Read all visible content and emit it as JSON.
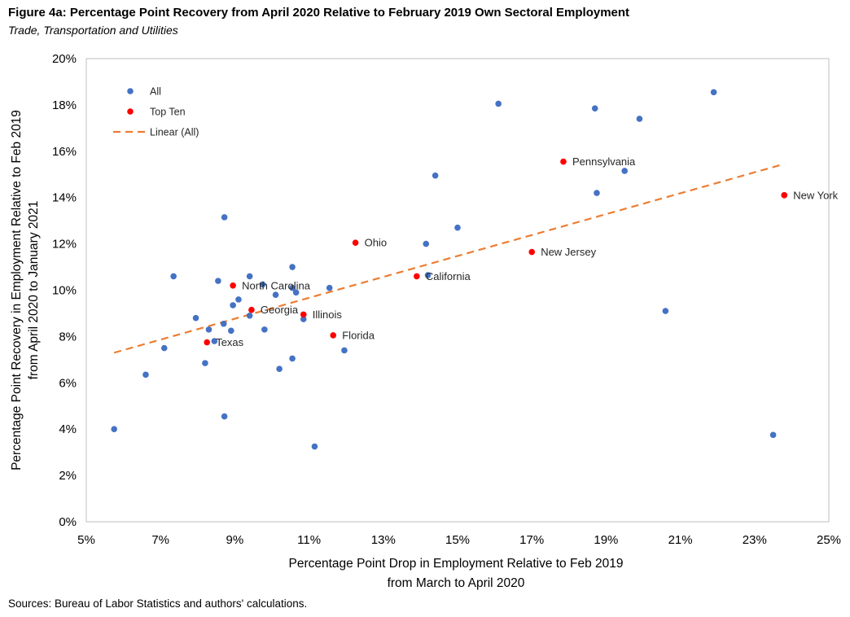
{
  "figure": {
    "title": "Figure 4a: Percentage Point Recovery from April 2020 Relative to February 2019 Own Sectoral Employment",
    "subtitle": "Trade, Transportation and Utilities",
    "source": "Sources: Bureau of Labor Statistics and authors' calculations."
  },
  "chart_data": {
    "type": "scatter",
    "xlabel_lines": [
      "Percentage Point Drop in Employment Relative to Feb 2019",
      "from March to April 2020"
    ],
    "ylabel_lines": [
      "Percentage Point Recovery in Employment Relative to Feb 2019",
      "from April 2020 to January 2021"
    ],
    "xlim": [
      5,
      25
    ],
    "ylim": [
      0,
      20
    ],
    "x_ticks": [
      5,
      7,
      9,
      11,
      13,
      15,
      17,
      19,
      21,
      23,
      25
    ],
    "y_ticks": [
      0,
      2,
      4,
      6,
      8,
      10,
      12,
      14,
      16,
      18,
      20
    ],
    "tick_suffix": "%",
    "grid": false,
    "legend": {
      "position": "top-left",
      "entries": [
        {
          "label": "All",
          "kind": "marker",
          "color": "#4472C4"
        },
        {
          "label": "Top Ten",
          "kind": "marker",
          "color": "#FF0000"
        },
        {
          "label": "Linear (All)",
          "kind": "dashed-line",
          "color": "#ED7D31"
        }
      ]
    },
    "series": [
      {
        "name": "All",
        "color": "#4472C4",
        "points": [
          {
            "x": 5.75,
            "y": 4.0
          },
          {
            "x": 6.6,
            "y": 6.35
          },
          {
            "x": 7.1,
            "y": 7.5
          },
          {
            "x": 7.35,
            "y": 10.6
          },
          {
            "x": 7.95,
            "y": 8.8
          },
          {
            "x": 8.2,
            "y": 6.85
          },
          {
            "x": 8.3,
            "y": 8.3
          },
          {
            "x": 8.45,
            "y": 7.8
          },
          {
            "x": 8.55,
            "y": 10.4
          },
          {
            "x": 8.7,
            "y": 8.55
          },
          {
            "x": 8.72,
            "y": 13.15
          },
          {
            "x": 8.72,
            "y": 4.55
          },
          {
            "x": 8.9,
            "y": 8.25
          },
          {
            "x": 8.95,
            "y": 9.35
          },
          {
            "x": 9.1,
            "y": 9.6
          },
          {
            "x": 9.4,
            "y": 10.6
          },
          {
            "x": 9.4,
            "y": 8.9
          },
          {
            "x": 9.75,
            "y": 10.25
          },
          {
            "x": 9.8,
            "y": 8.3
          },
          {
            "x": 10.1,
            "y": 9.8
          },
          {
            "x": 10.2,
            "y": 6.6
          },
          {
            "x": 10.55,
            "y": 10.1
          },
          {
            "x": 10.55,
            "y": 11.0
          },
          {
            "x": 10.65,
            "y": 9.9
          },
          {
            "x": 10.55,
            "y": 7.05
          },
          {
            "x": 10.85,
            "y": 8.75
          },
          {
            "x": 11.15,
            "y": 3.25
          },
          {
            "x": 11.55,
            "y": 10.1
          },
          {
            "x": 11.95,
            "y": 7.4
          },
          {
            "x": 14.15,
            "y": 12.0
          },
          {
            "x": 14.2,
            "y": 10.65
          },
          {
            "x": 14.4,
            "y": 14.95
          },
          {
            "x": 15.0,
            "y": 12.7
          },
          {
            "x": 16.1,
            "y": 18.05
          },
          {
            "x": 18.7,
            "y": 17.85
          },
          {
            "x": 18.75,
            "y": 14.2
          },
          {
            "x": 19.5,
            "y": 15.15
          },
          {
            "x": 19.9,
            "y": 17.4
          },
          {
            "x": 20.6,
            "y": 9.1
          },
          {
            "x": 21.9,
            "y": 18.55
          },
          {
            "x": 23.5,
            "y": 3.75
          },
          {
            "x": 23.8,
            "y": 14.1
          }
        ]
      },
      {
        "name": "Top Ten",
        "color": "#FF0000",
        "points": [
          {
            "x": 8.25,
            "y": 7.75,
            "label": "Texas"
          },
          {
            "x": 8.95,
            "y": 10.2,
            "label": "North Carolina"
          },
          {
            "x": 9.45,
            "y": 9.15,
            "label": "Georgia"
          },
          {
            "x": 10.85,
            "y": 8.95,
            "label": "Illinois"
          },
          {
            "x": 11.65,
            "y": 8.05,
            "label": "Florida"
          },
          {
            "x": 12.25,
            "y": 12.05,
            "label": "Ohio"
          },
          {
            "x": 13.9,
            "y": 10.6,
            "label": "California"
          },
          {
            "x": 17.0,
            "y": 11.65,
            "label": "New Jersey"
          },
          {
            "x": 17.85,
            "y": 15.55,
            "label": "Pennsylvania"
          },
          {
            "x": 23.8,
            "y": 14.1,
            "label": "New York"
          }
        ]
      }
    ],
    "trendline": {
      "name": "Linear (All)",
      "color": "#ED7D31",
      "points": [
        {
          "x": 5.75,
          "y": 7.3
        },
        {
          "x": 23.8,
          "y": 15.45
        }
      ]
    }
  }
}
